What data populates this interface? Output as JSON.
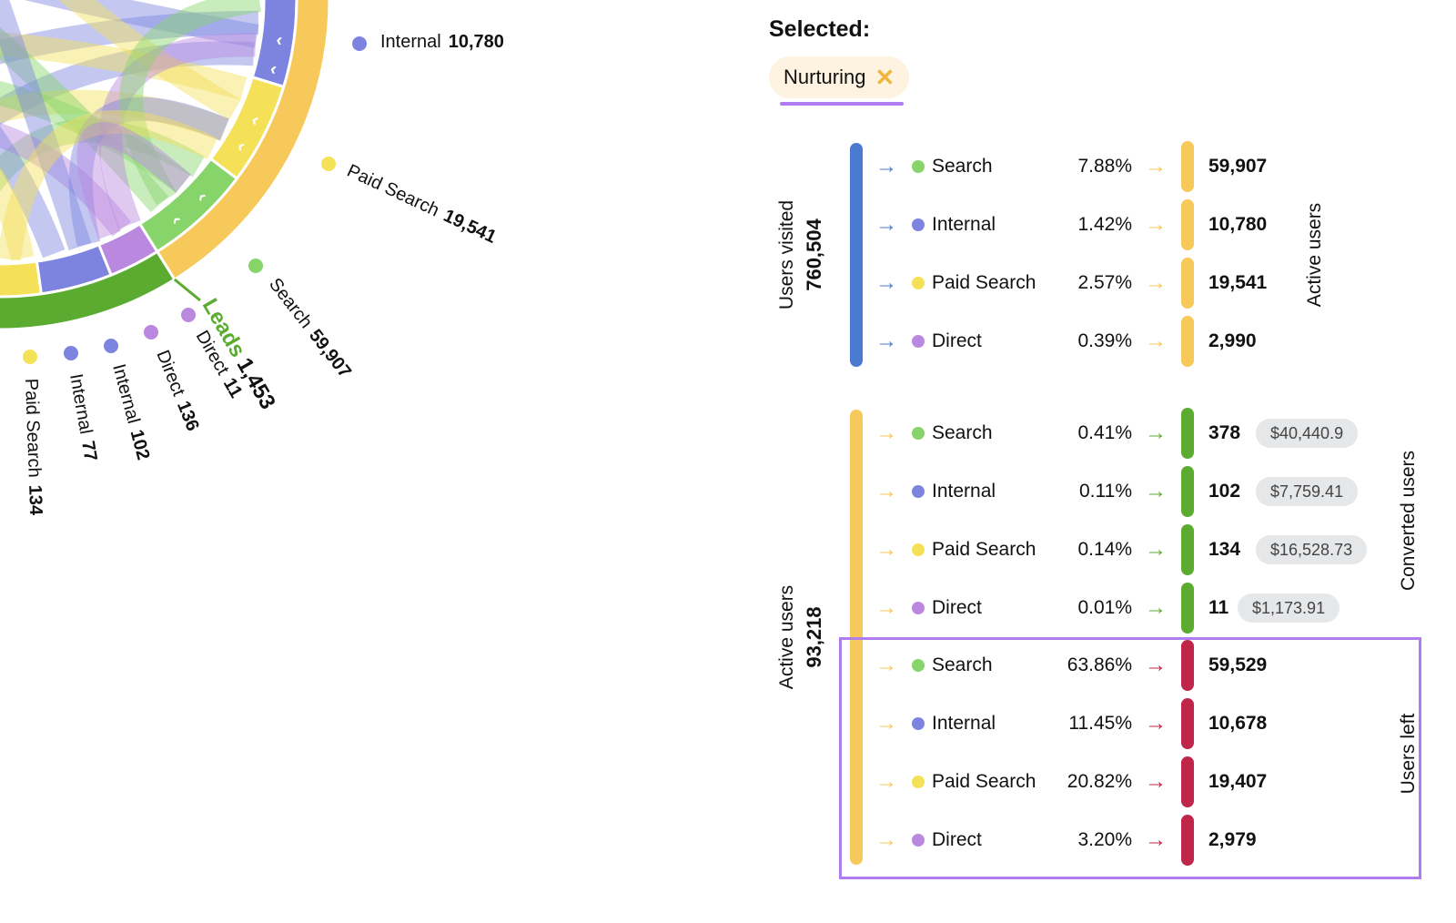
{
  "colors": {
    "search": "#86d46a",
    "internal": "#7d84e0",
    "paid_search": "#f5e158",
    "direct": "#bb88e0",
    "visited_bar": "#4a7bd0",
    "active_bar": "#f7c85a",
    "converted_bar": "#5aab2f",
    "left_bar": "#c0264a",
    "highlight": "#b07df0"
  },
  "chord": {
    "labels": [
      {
        "channel": "internal",
        "name": "Internal",
        "value": "10,780"
      },
      {
        "channel": "paid_search",
        "name": "Paid Search",
        "value": "19,541"
      },
      {
        "channel": "search",
        "name": "Search",
        "value": "59,907"
      },
      {
        "channel": "direct",
        "name": "Direct",
        "value": "11"
      },
      {
        "channel": "direct",
        "name": "Direct",
        "value": "136"
      },
      {
        "channel": "internal",
        "name": "Internal",
        "value": "102"
      },
      {
        "channel": "internal",
        "name": "Internal",
        "value": "77"
      },
      {
        "channel": "paid_search",
        "name": "Paid Search",
        "value": "134"
      }
    ],
    "leads": {
      "name": "Leads",
      "value": "1,453"
    }
  },
  "selected": {
    "title": "Selected:",
    "chip": "Nurturing",
    "close_icon": "x-icon"
  },
  "groups": {
    "visited": {
      "title": "Users visited",
      "value": "760,504"
    },
    "active_left": {
      "title": "Active users",
      "value": "93,218"
    },
    "active_right": {
      "title": "Active users"
    },
    "converted": {
      "title": "Converted users"
    },
    "left": {
      "title": "Users left"
    }
  },
  "rows_visited": [
    {
      "channel": "search",
      "name": "Search",
      "pct": "7.88%",
      "value": "59,907"
    },
    {
      "channel": "internal",
      "name": "Internal",
      "pct": "1.42%",
      "value": "10,780"
    },
    {
      "channel": "paid_search",
      "name": "Paid Search",
      "pct": "2.57%",
      "value": "19,541"
    },
    {
      "channel": "direct",
      "name": "Direct",
      "pct": "0.39%",
      "value": "2,990"
    }
  ],
  "rows_converted": [
    {
      "channel": "search",
      "name": "Search",
      "pct": "0.41%",
      "value": "378",
      "revenue": "$40,440.9"
    },
    {
      "channel": "internal",
      "name": "Internal",
      "pct": "0.11%",
      "value": "102",
      "revenue": "$7,759.41"
    },
    {
      "channel": "paid_search",
      "name": "Paid Search",
      "pct": "0.14%",
      "value": "134",
      "revenue": "$16,528.73"
    },
    {
      "channel": "direct",
      "name": "Direct",
      "pct": "0.01%",
      "value": "11",
      "revenue": "$1,173.91"
    }
  ],
  "rows_left": [
    {
      "channel": "search",
      "name": "Search",
      "pct": "63.86%",
      "value": "59,529"
    },
    {
      "channel": "internal",
      "name": "Internal",
      "pct": "11.45%",
      "value": "10,678"
    },
    {
      "channel": "paid_search",
      "name": "Paid Search",
      "pct": "20.82%",
      "value": "19,407"
    },
    {
      "channel": "direct",
      "name": "Direct",
      "pct": "3.20%",
      "value": "2,979"
    }
  ]
}
